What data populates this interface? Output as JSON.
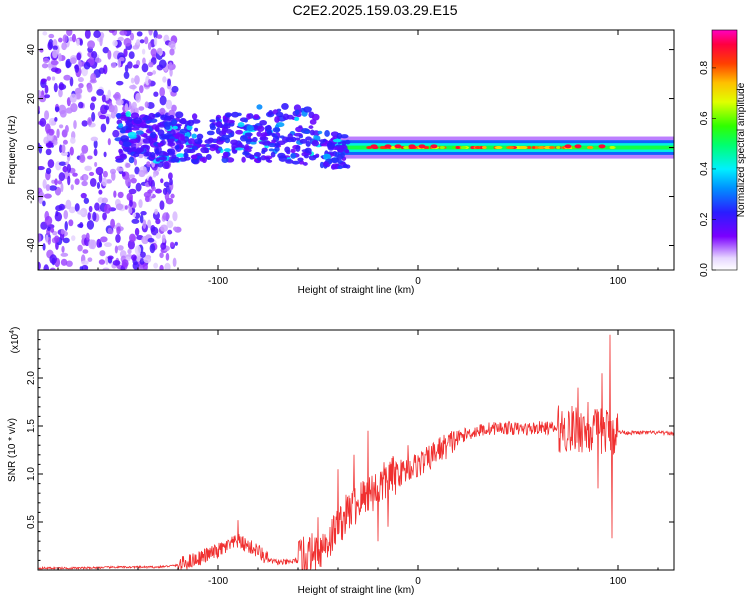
{
  "title": "C2E2.2025.159.03.29.E15",
  "colors": {
    "snr_line": "#f03030",
    "axis": "#000000",
    "background": "#ffffff"
  },
  "chart_data": [
    {
      "type": "heatmap",
      "name_hint": "spectrogram",
      "xlabel": "Height of straight line (km)",
      "ylabel": "Frequency (Hz)",
      "xlim": [
        -190,
        128
      ],
      "ylim": [
        -50,
        48
      ],
      "x_ticks": [
        -100,
        0,
        100
      ],
      "x_tick_labels": [
        "-100",
        "0",
        "100"
      ],
      "y_ticks": [
        -40,
        -20,
        0,
        20,
        40
      ],
      "y_tick_labels": [
        "-40",
        "-20",
        "0",
        "20",
        "40"
      ],
      "grid": false,
      "colorbar": {
        "label": "Normalized spectral amplitude",
        "range": [
          0.0,
          0.95
        ],
        "ticks": [
          0.0,
          0.2,
          0.4,
          0.6,
          0.8
        ],
        "tick_labels": [
          "0.0",
          "0.2",
          "0.4",
          "0.6",
          "0.8"
        ],
        "colormap": "rainbow"
      },
      "regions": [
        {
          "x": [
            -190,
            -120
          ],
          "freq": [
            -50,
            48
          ],
          "amplitude": 0.08
        },
        {
          "x": [
            -150,
            -100
          ],
          "freq": [
            -8,
            15
          ],
          "amplitude": 0.2
        },
        {
          "x": [
            -100,
            -40
          ],
          "freq": [
            -10,
            15
          ],
          "amplitude": 0.25
        },
        {
          "x": [
            -80,
            -50
          ],
          "freq": [
            5,
            15
          ],
          "amplitude": 0.3
        },
        {
          "x": [
            -40,
            128
          ],
          "freq": [
            -4,
            4
          ],
          "amplitude": 0.45
        },
        {
          "x": [
            -25,
            100
          ],
          "freq": [
            -1,
            1
          ],
          "amplitude": 0.9
        }
      ]
    },
    {
      "type": "line",
      "name_hint": "snr",
      "xlabel": "Height of straight line (km)",
      "ylabel": "SNR (10 * v/v)",
      "y_exponent_label": "(x10",
      "y_exponent_sup": "4",
      "y_exponent_close": ")",
      "xlim": [
        -190,
        128
      ],
      "ylim": [
        0,
        2.5
      ],
      "x_ticks": [
        -100,
        0,
        100
      ],
      "x_tick_labels": [
        "-100",
        "0",
        "100"
      ],
      "y_ticks": [
        0.5,
        1.0,
        1.5,
        2.0
      ],
      "y_tick_labels": [
        "0.5",
        "1.0",
        "1.5",
        "2.0"
      ],
      "grid": false,
      "series": [
        {
          "x": [
            -190,
            -170,
            -150,
            -130,
            -120,
            -110,
            -100,
            -95,
            -90,
            -85,
            -80,
            -75,
            -70,
            -65,
            -60,
            -55,
            -50,
            -45,
            -40,
            -35,
            -30,
            -25,
            -20,
            -15,
            -10,
            -5,
            0,
            5,
            10,
            15,
            20,
            25,
            30,
            35,
            40,
            45,
            50,
            55,
            60,
            65,
            70,
            75,
            80,
            85,
            90,
            95,
            100,
            105,
            110,
            115,
            120,
            128
          ],
          "values": [
            0.02,
            0.02,
            0.03,
            0.03,
            0.05,
            0.12,
            0.2,
            0.25,
            0.3,
            0.25,
            0.2,
            0.1,
            0.08,
            0.08,
            0.1,
            0.15,
            0.2,
            0.3,
            0.45,
            0.6,
            0.7,
            0.8,
            0.85,
            0.95,
            1.0,
            1.05,
            1.1,
            1.15,
            1.25,
            1.3,
            1.38,
            1.42,
            1.45,
            1.47,
            1.48,
            1.48,
            1.47,
            1.47,
            1.48,
            1.48,
            1.47,
            1.46,
            1.47,
            1.45,
            1.44,
            1.45,
            1.44,
            1.43,
            1.43,
            1.43,
            1.43,
            1.42
          ],
          "spikes": [
            {
              "x": -90,
              "value": 0.52
            },
            {
              "x": -50,
              "value": 0.55
            },
            {
              "x": -40,
              "value": 1.05
            },
            {
              "x": -32,
              "value": 1.2
            },
            {
              "x": -25,
              "value": 1.45
            },
            {
              "x": -20,
              "value": 1.55
            },
            {
              "x": -15,
              "value": 1.3
            },
            {
              "x": -5,
              "value": 1.3
            },
            {
              "x": 80,
              "value": 1.9
            },
            {
              "x": 85,
              "value": 1.75
            },
            {
              "x": 92,
              "value": 2.05
            },
            {
              "x": 96,
              "value": 2.45
            }
          ],
          "dips": [
            {
              "x": -20,
              "value": 0.3
            },
            {
              "x": -15,
              "value": 0.45
            },
            {
              "x": 90,
              "value": 0.85
            },
            {
              "x": 97,
              "value": 0.33
            }
          ]
        }
      ]
    }
  ]
}
